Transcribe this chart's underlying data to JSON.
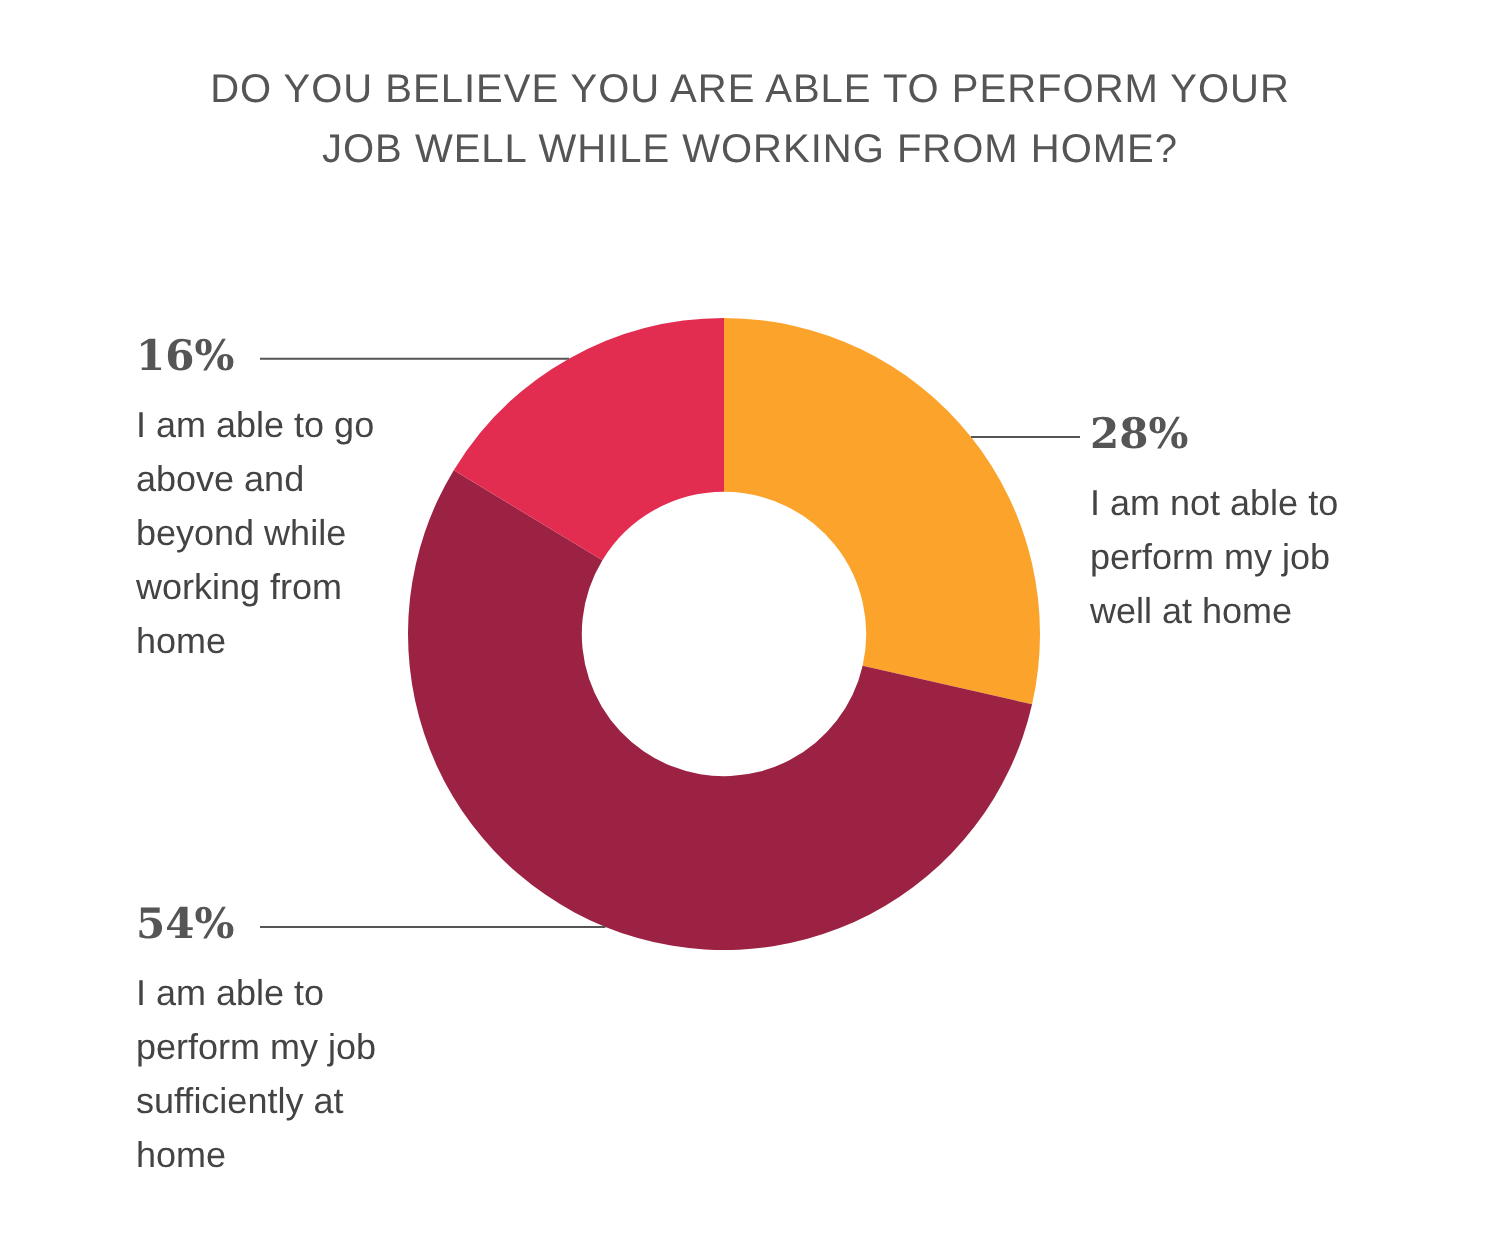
{
  "chart_data": {
    "type": "donut",
    "title": "DO YOU BELIEVE YOU ARE ABLE TO PERFORM YOUR JOB WELL WHILE WORKING FROM HOME?",
    "categories": [
      "I am not able to perform my job well at home",
      "I am able to perform my job sufficiently at home",
      "I am able to go above and beyond while working from home"
    ],
    "values": [
      28,
      54,
      16
    ],
    "value_labels": [
      "28%",
      "54%",
      "16%"
    ],
    "colors": [
      "#fba32b",
      "#9b2242",
      "#e32d50"
    ],
    "legend": false
  }
}
